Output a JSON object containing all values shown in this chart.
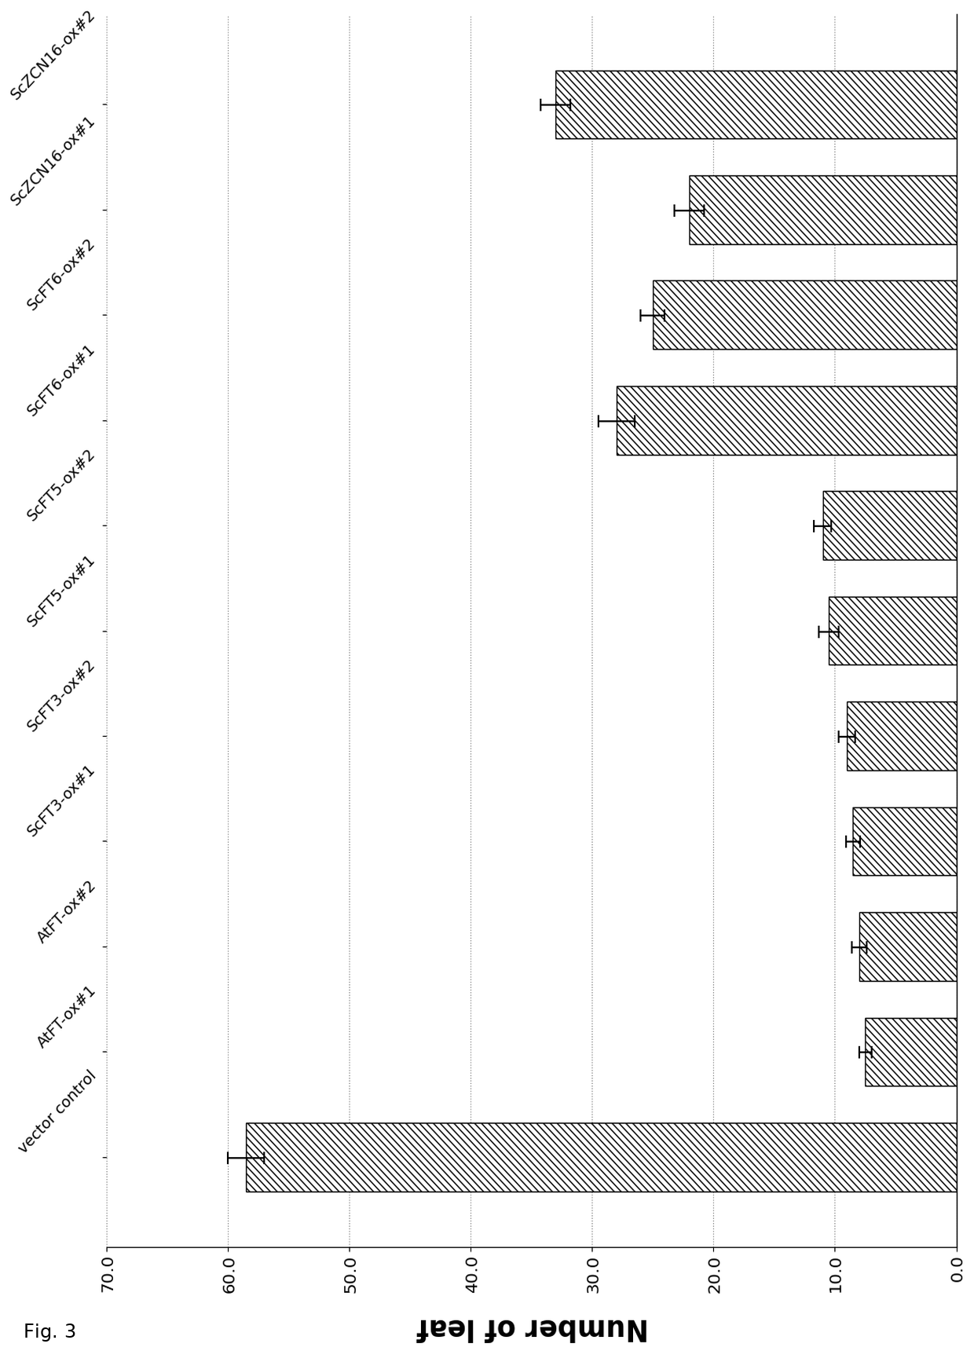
{
  "title": "Number of leaf",
  "fig_label": "Fig. 3",
  "categories": [
    "vector control",
    "AtFT-ox#1",
    "AtFT-ox#2",
    "ScFT3-ox#1",
    "ScFT3-ox#2",
    "ScFT5-ox#1",
    "ScFT5-ox#2",
    "ScFT6-ox#1",
    "ScFT6-ox#2",
    "ScZCN16-ox#1",
    "ScZCN16-ox#2"
  ],
  "values": [
    58.5,
    7.5,
    8.0,
    8.5,
    9.0,
    10.5,
    11.0,
    28.0,
    25.0,
    22.0,
    33.0
  ],
  "errors": [
    1.5,
    0.5,
    0.6,
    0.6,
    0.7,
    0.8,
    0.7,
    1.5,
    1.0,
    1.2,
    1.2
  ],
  "ylim": [
    0,
    70
  ],
  "yticks": [
    0.0,
    10.0,
    20.0,
    30.0,
    40.0,
    50.0,
    60.0,
    70.0
  ],
  "hatch": "////",
  "background_color": "#ffffff",
  "title_fontsize": 24,
  "tick_fontsize": 14,
  "label_fontsize": 13,
  "bar_width": 0.65
}
